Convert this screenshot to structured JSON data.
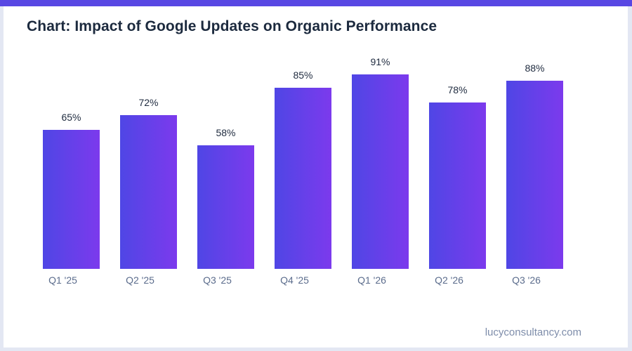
{
  "page": {
    "accent_bar_color": "#5847e3",
    "frame_color": "#e3e7f3",
    "background_color": "#ffffff"
  },
  "header": {
    "title": "Chart: Impact of Google Updates on Organic Performance",
    "title_color": "#1c2a3e"
  },
  "chart_data": {
    "type": "bar",
    "title": "Chart: Impact of Google Updates on Organic Performance",
    "categories": [
      "Q1 '25",
      "Q2 '25",
      "Q3 '25",
      "Q4 '25",
      "Q1 '26",
      "Q2 '26",
      "Q3 '26"
    ],
    "values": [
      65,
      72,
      58,
      85,
      91,
      78,
      88
    ],
    "unit": "%",
    "value_labels": [
      "65%",
      "72%",
      "58%",
      "85%",
      "91%",
      "78%",
      "88%"
    ],
    "xlabel": "",
    "ylabel": "",
    "ylim": [
      0,
      100
    ],
    "grid": false,
    "legend": false,
    "bar_gradient_left": "#4f46e5",
    "bar_gradient_right": "#7c3aed",
    "value_label_color": "#1e2a3e",
    "category_label_color": "#5b6c8c"
  },
  "footer": {
    "text": "lucyconsultancy.com",
    "color": "#7e8daa"
  }
}
